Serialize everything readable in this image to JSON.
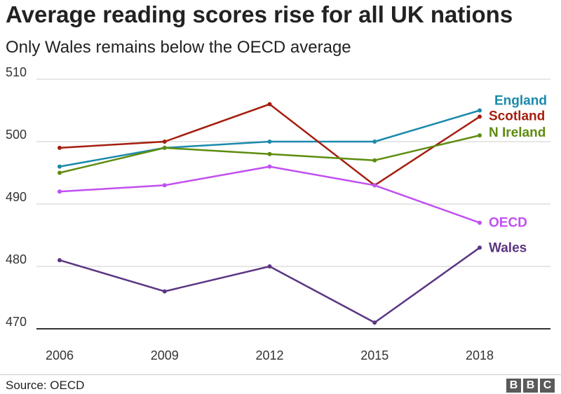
{
  "title": "Average reading scores rise for all UK nations",
  "subtitle": "Only Wales remains below the OECD average",
  "source": "Source: OECD",
  "logo": [
    "B",
    "B",
    "C"
  ],
  "chart_data": {
    "type": "line",
    "x": [
      2006,
      2009,
      2012,
      2015,
      2018
    ],
    "x_tick_labels": [
      "2006",
      "2009",
      "2012",
      "2015",
      "2018"
    ],
    "y_ticks": [
      470,
      480,
      490,
      500,
      510
    ],
    "y_tick_labels": [
      "470",
      "480",
      "490",
      "500",
      "510"
    ],
    "ylim": [
      470,
      510
    ],
    "grid": true,
    "legend": "direct labels at line ends",
    "series": [
      {
        "name": "England",
        "color": "#1b8aab",
        "values": [
          496,
          499,
          500,
          500,
          505
        ]
      },
      {
        "name": "Scotland",
        "color": "#a51e0f",
        "values": [
          499,
          500,
          506,
          493,
          504
        ]
      },
      {
        "name": "N Ireland",
        "color": "#5e8c0f",
        "values": [
          495,
          499,
          498,
          497,
          501
        ]
      },
      {
        "name": "OECD",
        "color": "#c150f0",
        "values": [
          492,
          493,
          496,
          493,
          487
        ]
      },
      {
        "name": "Wales",
        "color": "#5b3582",
        "values": [
          481,
          476,
          480,
          471,
          483
        ]
      }
    ]
  }
}
